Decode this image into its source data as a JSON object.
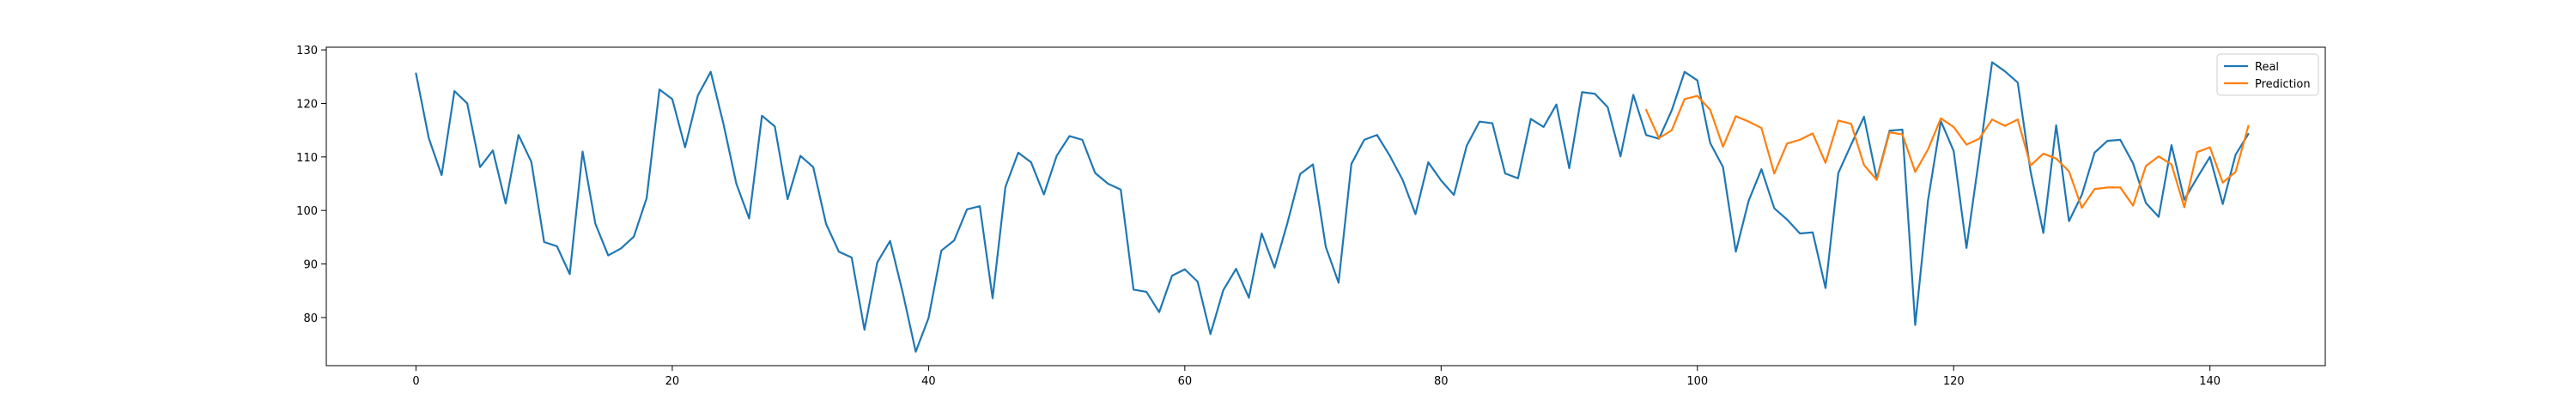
{
  "chart_data": {
    "type": "line",
    "title": "",
    "xlabel": "",
    "ylabel": "",
    "xlim": [
      -7,
      149
    ],
    "ylim": [
      71,
      130.5
    ],
    "xticks": [
      0,
      20,
      40,
      60,
      80,
      100,
      120,
      140
    ],
    "yticks": [
      80,
      90,
      100,
      110,
      120,
      130
    ],
    "grid": false,
    "legend_position": "top-right",
    "series": [
      {
        "name": "Real",
        "color": "#1f77b4",
        "x_start": 0,
        "values": [
          125.6,
          113.5,
          106.6,
          122.3,
          120.0,
          108.1,
          111.2,
          101.3,
          114.1,
          109.1,
          94.1,
          93.3,
          88.1,
          111.0,
          97.5,
          91.6,
          92.9,
          95.1,
          102.3,
          122.6,
          120.8,
          111.8,
          121.5,
          125.9,
          116.1,
          105.0,
          98.5,
          117.7,
          115.7,
          102.1,
          110.2,
          108.1,
          97.5,
          92.3,
          91.2,
          77.7,
          90.3,
          94.3,
          84.5,
          73.6,
          79.9,
          92.5,
          94.4,
          100.2,
          100.8,
          83.6,
          104.4,
          110.8,
          109.0,
          103.0,
          110.2,
          113.9,
          113.2,
          107.0,
          105.0,
          103.9,
          85.2,
          84.8,
          81.0,
          87.8,
          89.0,
          86.7,
          76.9,
          85.1,
          89.1,
          83.7,
          95.7,
          89.3,
          97.6,
          106.8,
          108.6,
          93.2,
          86.5,
          108.7,
          113.2,
          114.1,
          110.2,
          105.7,
          99.3,
          109.0,
          105.6,
          102.9,
          112.1,
          116.6,
          116.3,
          106.9,
          106.0,
          117.1,
          115.6,
          119.8,
          107.9,
          122.1,
          121.8,
          119.3,
          110.1,
          121.6,
          114.1,
          113.4,
          118.7,
          125.9,
          124.3,
          112.6,
          108.1,
          92.3,
          101.8,
          107.7,
          100.4,
          98.3,
          95.7,
          95.9,
          85.5,
          107.0,
          112.3,
          117.5,
          105.9,
          114.9,
          115.1,
          78.6,
          101.9,
          116.7,
          111.1,
          93.0,
          110.1,
          127.7,
          126.0,
          123.9,
          107.3,
          95.8,
          115.9,
          98.0,
          102.9,
          110.8,
          113.0,
          113.2,
          108.8,
          101.4,
          98.8,
          112.2,
          102.0,
          106.1,
          110.0,
          101.2,
          110.4,
          114.3
        ]
      },
      {
        "name": "Prediction",
        "color": "#ff7f0e",
        "x_start": 96,
        "values": [
          118.8,
          113.5,
          115.0,
          120.8,
          121.4,
          118.8,
          111.9,
          117.6,
          116.6,
          115.4,
          106.9,
          112.5,
          113.2,
          114.4,
          108.9,
          116.8,
          116.2,
          108.5,
          105.7,
          114.6,
          114.2,
          107.2,
          111.4,
          117.2,
          115.6,
          112.3,
          113.4,
          117.0,
          115.8,
          117.0,
          108.4,
          110.6,
          109.7,
          107.3,
          100.5,
          104.0,
          104.3,
          104.3,
          100.9,
          108.3,
          110.1,
          108.6,
          100.6,
          110.9,
          111.8,
          105.2,
          107.2,
          115.8
        ]
      }
    ]
  }
}
